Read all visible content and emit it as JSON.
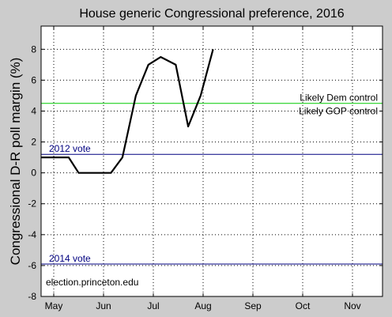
{
  "chart_data": {
    "type": "line",
    "title": "House generic Congressional preference, 2016",
    "xlabel": "",
    "ylabel": "Congressional D-R poll margin (%)",
    "ylim": [
      -8,
      9.5
    ],
    "yticks": [
      -8,
      -6,
      -4,
      -2,
      0,
      2,
      4,
      6,
      8
    ],
    "xlim": [
      0,
      7.4
    ],
    "xticks": [
      {
        "pos": 0,
        "label": "May"
      },
      {
        "pos": 1,
        "label": "Jun"
      },
      {
        "pos": 2,
        "label": "Jul"
      },
      {
        "pos": 3,
        "label": "Aug"
      },
      {
        "pos": 4,
        "label": "Sep"
      },
      {
        "pos": 5,
        "label": "Oct"
      },
      {
        "pos": 6,
        "label": "Nov"
      }
    ],
    "grid": true,
    "series": [
      {
        "color": "#000000",
        "points": [
          [
            -0.25,
            1
          ],
          [
            0.3,
            1
          ],
          [
            0.5,
            0
          ],
          [
            0.72,
            0
          ],
          [
            1.15,
            0
          ],
          [
            1.38,
            1
          ],
          [
            1.65,
            5
          ],
          [
            1.9,
            7
          ],
          [
            2.15,
            7.5
          ],
          [
            2.45,
            7
          ],
          [
            2.7,
            3
          ],
          [
            2.95,
            5
          ],
          [
            3.2,
            8
          ]
        ]
      }
    ],
    "reference_lines": [
      {
        "y": 4.5,
        "color": "#00cc00",
        "label_above": "Likely Dem control",
        "label_below": "Likely GOP control"
      },
      {
        "y": 1.2,
        "color": "#000080",
        "label": "2012 vote"
      },
      {
        "y": -5.9,
        "color": "#000080",
        "label": "2014 vote"
      }
    ],
    "annotations": [
      "election.princeton.edu"
    ]
  },
  "colors": {
    "background": "#cccccc",
    "plot_area": "#ffffff",
    "grid": "#000000"
  }
}
